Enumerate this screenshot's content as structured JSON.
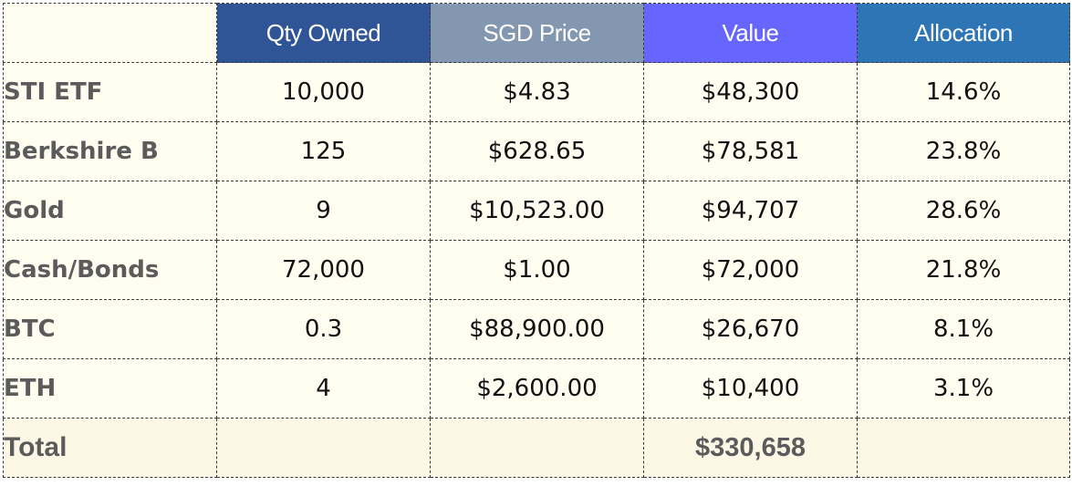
{
  "colors": {
    "header_qty": "#2f5597",
    "header_price": "#8497b0",
    "header_value": "#6666ff",
    "header_allocation": "#2e75b6",
    "cell_background": "#fffdf0"
  },
  "headers": {
    "qty": "Qty Owned",
    "price": "SGD Price",
    "value": "Value",
    "allocation": "Allocation"
  },
  "rows": [
    {
      "asset": "STI ETF",
      "qty": "10,000",
      "price": "$4.83",
      "value": "$48,300",
      "allocation": "14.6%"
    },
    {
      "asset": "Berkshire B",
      "qty": "125",
      "price": "$628.65",
      "value": "$78,581",
      "allocation": "23.8%"
    },
    {
      "asset": "Gold",
      "qty": "9",
      "price": "$10,523.00",
      "value": "$94,707",
      "allocation": "28.6%"
    },
    {
      "asset": "Cash/Bonds",
      "qty": "72,000",
      "price": "$1.00",
      "value": "$72,000",
      "allocation": "21.8%"
    },
    {
      "asset": "BTC",
      "qty": "0.3",
      "price": "$88,900.00",
      "value": "$26,670",
      "allocation": "8.1%"
    },
    {
      "asset": "ETH",
      "qty": "4",
      "price": "$2,600.00",
      "value": "$10,400",
      "allocation": "3.1%"
    }
  ],
  "total": {
    "label": "Total",
    "value": "$330,658"
  }
}
